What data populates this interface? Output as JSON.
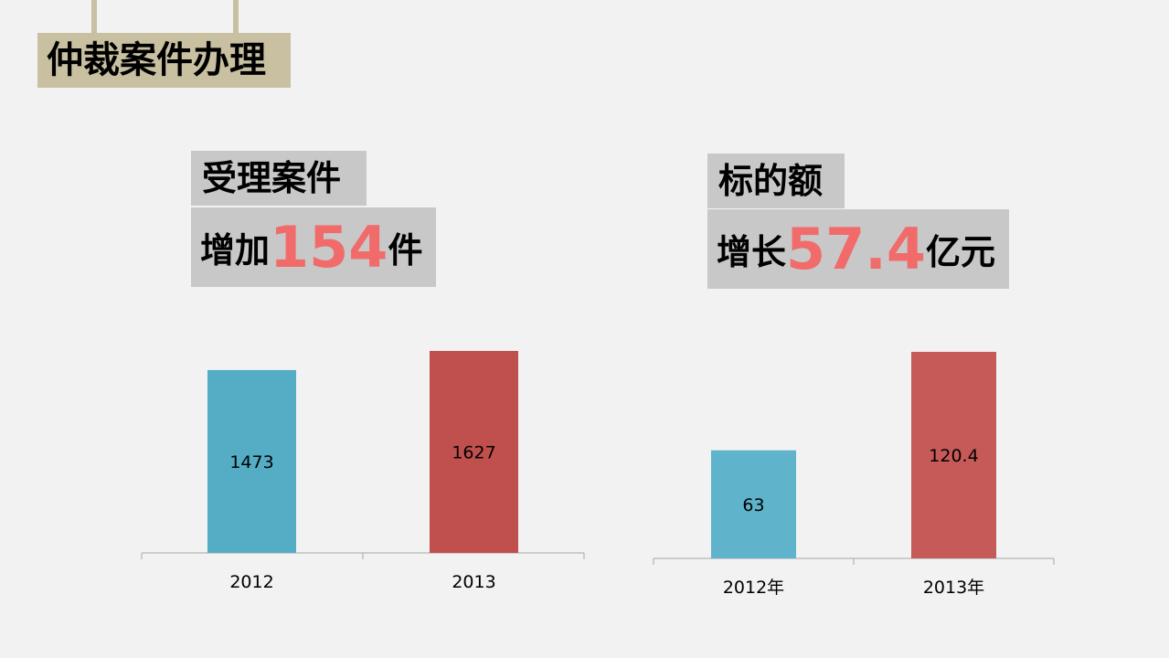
{
  "page": {
    "title": "仲裁案件办理"
  },
  "panels": [
    {
      "label_top": "受理案件",
      "label_prefix": "增加",
      "label_value": "154",
      "label_suffix": "件"
    },
    {
      "label_top": "标的额",
      "label_prefix": "增长",
      "label_value": "57.4",
      "label_suffix": "亿元"
    }
  ],
  "colors": {
    "bar_2012": "#54adc4",
    "bar_2013": "#c0504d",
    "bar_2012_right": "#5fb3ca",
    "bar_2013_right": "#c55a58",
    "accent": "#f26b6b",
    "title_bg": "#c8c0a0",
    "label_bg": "#c8c8c8"
  },
  "chart_data": [
    {
      "type": "bar",
      "categories": [
        "2012",
        "2013"
      ],
      "values": [
        1473,
        1627
      ],
      "data_labels": [
        "1473",
        "1627"
      ],
      "ylim": [
        0,
        1627
      ]
    },
    {
      "type": "bar",
      "categories": [
        "2012年",
        "2013年"
      ],
      "values": [
        63,
        120.4
      ],
      "data_labels": [
        "63",
        "120.4"
      ],
      "ylim": [
        0,
        120.4
      ]
    }
  ]
}
